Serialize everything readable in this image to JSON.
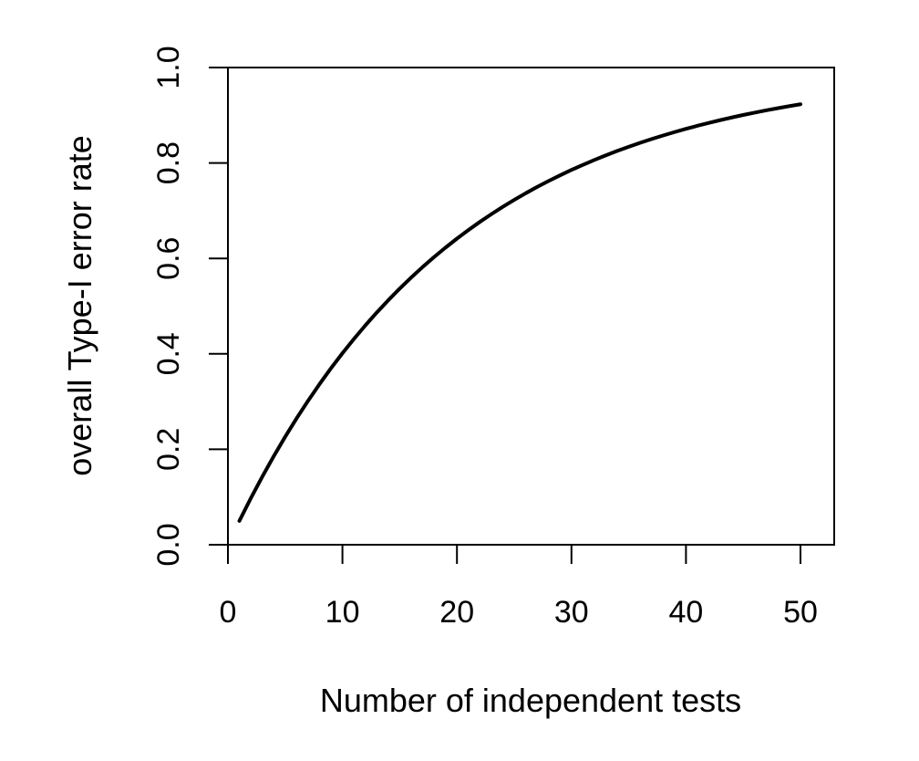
{
  "chart_data": {
    "type": "line",
    "title": "",
    "xlabel": "Number of independent tests",
    "ylabel": "overall Type-I error rate",
    "xlim": [
      0,
      50
    ],
    "ylim": [
      0,
      1
    ],
    "xticks": [
      0,
      10,
      20,
      30,
      40,
      50
    ],
    "yticks": [
      0.0,
      0.2,
      0.4,
      0.6,
      0.8,
      1.0
    ],
    "xtick_labels": [
      "0",
      "10",
      "20",
      "30",
      "40",
      "50"
    ],
    "ytick_labels": [
      "0.0",
      "0.2",
      "0.4",
      "0.6",
      "0.8",
      "1.0"
    ],
    "grid": false,
    "line_color": "#000000",
    "series": [
      {
        "x": [
          1,
          2,
          3,
          4,
          5,
          6,
          7,
          8,
          9,
          10,
          11,
          12,
          13,
          14,
          15,
          16,
          17,
          18,
          19,
          20,
          21,
          22,
          23,
          24,
          25,
          26,
          27,
          28,
          29,
          30,
          31,
          32,
          33,
          34,
          35,
          36,
          37,
          38,
          39,
          40,
          41,
          42,
          43,
          44,
          45,
          46,
          47,
          48,
          49,
          50
        ],
        "y": [
          0.05,
          0.0975,
          0.1426,
          0.1855,
          0.2262,
          0.2649,
          0.3017,
          0.3366,
          0.3698,
          0.4013,
          0.4312,
          0.4596,
          0.4867,
          0.5123,
          0.5367,
          0.5599,
          0.5819,
          0.6028,
          0.6226,
          0.6415,
          0.6594,
          0.6765,
          0.6926,
          0.708,
          0.7226,
          0.7365,
          0.7497,
          0.7622,
          0.7741,
          0.7854,
          0.7961,
          0.8063,
          0.816,
          0.8252,
          0.8339,
          0.8422,
          0.8501,
          0.8576,
          0.8647,
          0.8715,
          0.8779,
          0.884,
          0.8898,
          0.8953,
          0.9006,
          0.9055,
          0.9103,
          0.9147,
          0.919,
          0.9231
        ]
      }
    ]
  }
}
